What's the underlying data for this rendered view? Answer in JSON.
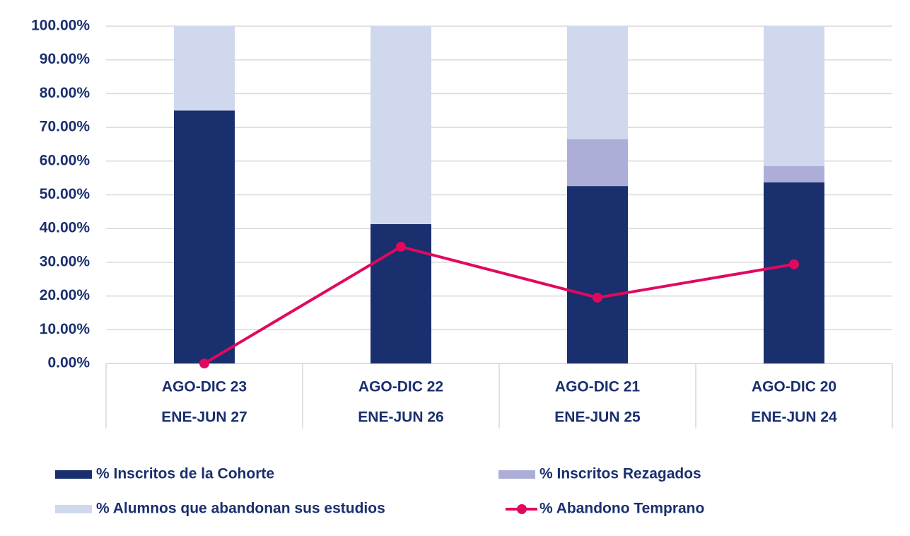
{
  "chart_data": {
    "type": "bar",
    "stacked": true,
    "categories": [
      [
        "AGO-DIC 23",
        "ENE-JUN 27"
      ],
      [
        "AGO-DIC 22",
        "ENE-JUN 26"
      ],
      [
        "AGO-DIC 21",
        "ENE-JUN 25"
      ],
      [
        "AGO-DIC 20",
        "ENE-JUN 24"
      ]
    ],
    "series": [
      {
        "name": "% Inscritos de la Cohorte",
        "type": "bar",
        "color": "#1a2f6e",
        "values": [
          75,
          41.3,
          52.6,
          53.7
        ]
      },
      {
        "name": "% Inscritos Rezagados",
        "type": "bar",
        "color": "#adaed8",
        "values": [
          0,
          0,
          13.9,
          4.8
        ]
      },
      {
        "name": "% Alumnos que abandonan sus estudios",
        "type": "bar",
        "color": "#cfd8ec",
        "values": [
          25,
          58.7,
          33.5,
          41.5
        ]
      },
      {
        "name": "% Abandono Temprano",
        "type": "line",
        "color": "#e0095e",
        "values": [
          0,
          34.6,
          19.5,
          29.4
        ]
      }
    ],
    "ylim": [
      0,
      100
    ],
    "yticks": [
      {
        "value": 0,
        "label": "0.00%"
      },
      {
        "value": 10,
        "label": "10.00%"
      },
      {
        "value": 20,
        "label": "20.00%"
      },
      {
        "value": 30,
        "label": "30.00%"
      },
      {
        "value": 40,
        "label": "40.00%"
      },
      {
        "value": 50,
        "label": "50.00%"
      },
      {
        "value": 60,
        "label": "60.00%"
      },
      {
        "value": 70,
        "label": "70.00%"
      },
      {
        "value": 80,
        "label": "80.00%"
      },
      {
        "value": 90,
        "label": "90.00%"
      },
      {
        "value": 100,
        "label": "100.00%"
      }
    ],
    "grid": true,
    "legend": "bottom"
  }
}
